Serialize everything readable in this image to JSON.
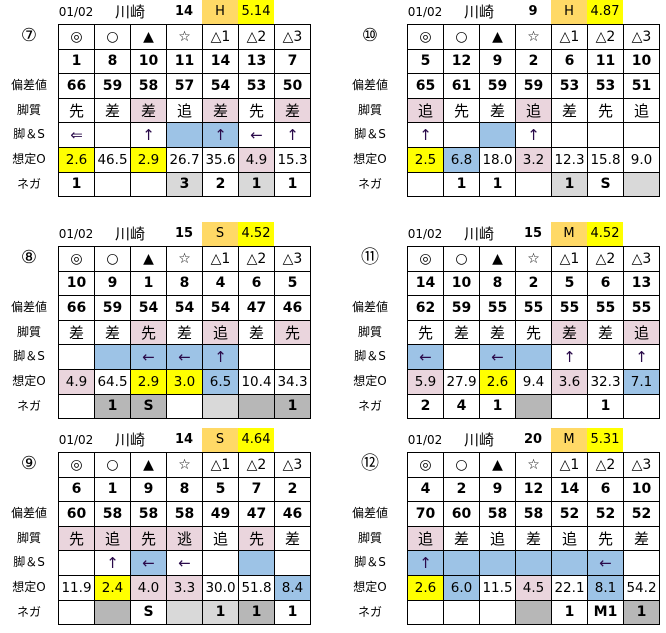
{
  "row_labels": [
    "偏差値",
    "脚質",
    "脚＆S",
    "想定O",
    "ネガ"
  ],
  "marks": [
    "◎",
    "○",
    "▲",
    "☆",
    "△1",
    "△2",
    "△3"
  ],
  "colors": {
    "y": "#ffff00",
    "p": "#ead5dd",
    "b": "#9dc3e6",
    "g": "#d9d9d9",
    "d": "#b7b7b7",
    "condition": "#ffd966",
    "index": "#ffff00"
  },
  "races": [
    {
      "race": "⑦",
      "date": "01/02",
      "venue": "川崎",
      "count": "14",
      "condition": "H",
      "index": "5.14",
      "nums": [
        "1",
        "8",
        "10",
        "11",
        "14",
        "13",
        "7"
      ],
      "dev": [
        "66",
        "59",
        "58",
        "57",
        "54",
        "53",
        "50"
      ],
      "style": [
        "先",
        "差",
        "差",
        "追",
        "差",
        "先",
        "差"
      ],
      "style_c": [
        "",
        "",
        "p",
        "",
        "p",
        "",
        "p"
      ],
      "legs": [
        "⇐",
        "",
        "↑",
        "",
        "↑",
        "←",
        "↑"
      ],
      "legs_c": [
        "",
        "",
        "",
        "b",
        "b",
        "",
        ""
      ],
      "odds": [
        "2.6",
        "46.5",
        "2.9",
        "26.7",
        "35.6",
        "4.9",
        "15.3"
      ],
      "odds_c": [
        "y",
        "",
        "y",
        "",
        "",
        "p",
        ""
      ],
      "nega": [
        "1",
        "",
        "",
        "3",
        "2",
        "1",
        "1"
      ],
      "nega_c": [
        "",
        "",
        "",
        "g",
        "",
        "g",
        ""
      ]
    },
    {
      "race": "⑩",
      "date": "01/02",
      "venue": "川崎",
      "count": "9",
      "condition": "H",
      "index": "4.87",
      "nums": [
        "5",
        "12",
        "9",
        "2",
        "6",
        "11",
        "10"
      ],
      "dev": [
        "65",
        "61",
        "59",
        "59",
        "53",
        "53",
        "51"
      ],
      "style": [
        "追",
        "先",
        "差",
        "追",
        "差",
        "先",
        "追"
      ],
      "style_c": [
        "p",
        "",
        "",
        "p",
        "",
        "",
        ""
      ],
      "legs": [
        "↑",
        "",
        "",
        "↑",
        "",
        "",
        ""
      ],
      "legs_c": [
        "",
        "",
        "b",
        "",
        "",
        "",
        ""
      ],
      "odds": [
        "2.5",
        "6.8",
        "18.0",
        "3.2",
        "12.3",
        "15.8",
        "9.0"
      ],
      "odds_c": [
        "y",
        "b",
        "",
        "p",
        "",
        "",
        ""
      ],
      "nega": [
        "",
        "1",
        "1",
        "",
        "1",
        "S",
        ""
      ],
      "nega_c": [
        "",
        "",
        "",
        "",
        "g",
        "",
        "g"
      ]
    },
    {
      "race": "⑧",
      "date": "01/02",
      "venue": "川崎",
      "count": "15",
      "condition": "S",
      "index": "4.52",
      "nums": [
        "10",
        "9",
        "1",
        "8",
        "4",
        "6",
        "5"
      ],
      "dev": [
        "66",
        "59",
        "54",
        "54",
        "54",
        "47",
        "46"
      ],
      "style": [
        "差",
        "差",
        "先",
        "差",
        "追",
        "差",
        "先"
      ],
      "style_c": [
        "",
        "",
        "p",
        "",
        "p",
        "",
        "p"
      ],
      "legs": [
        "",
        "",
        "←",
        "←",
        "↑",
        "",
        ""
      ],
      "legs_c": [
        "",
        "b",
        "b",
        "b",
        "b",
        "",
        ""
      ],
      "odds": [
        "4.9",
        "64.5",
        "2.9",
        "3.0",
        "6.5",
        "10.4",
        "34.3"
      ],
      "odds_c": [
        "p",
        "",
        "y",
        "y",
        "b",
        "",
        ""
      ],
      "nega": [
        "",
        "1",
        "S",
        "",
        "",
        "",
        "1"
      ],
      "nega_c": [
        "",
        "d",
        "d",
        "",
        "g",
        "d",
        "d"
      ]
    },
    {
      "race": "⑪",
      "date": "01/02",
      "venue": "川崎",
      "count": "15",
      "condition": "M",
      "index": "4.52",
      "nums": [
        "14",
        "10",
        "8",
        "2",
        "5",
        "6",
        "13"
      ],
      "dev": [
        "62",
        "59",
        "55",
        "55",
        "55",
        "55",
        "55"
      ],
      "style": [
        "先",
        "差",
        "差",
        "先",
        "差",
        "差",
        "追"
      ],
      "style_c": [
        "",
        "",
        "",
        "",
        "p",
        "",
        "p"
      ],
      "legs": [
        "←",
        "",
        "←",
        "",
        "↑",
        "",
        "↑"
      ],
      "legs_c": [
        "b",
        "",
        "b",
        "b",
        "",
        "",
        ""
      ],
      "odds": [
        "5.9",
        "27.9",
        "2.6",
        "9.4",
        "3.6",
        "32.3",
        "7.1"
      ],
      "odds_c": [
        "p",
        "",
        "y",
        "",
        "p",
        "",
        "b"
      ],
      "nega": [
        "2",
        "4",
        "1",
        "",
        "",
        "1",
        ""
      ],
      "nega_c": [
        "",
        "",
        "",
        "d",
        "",
        "",
        ""
      ]
    },
    {
      "race": "⑨",
      "date": "01/02",
      "venue": "川崎",
      "count": "14",
      "condition": "S",
      "index": "4.64",
      "nums": [
        "6",
        "1",
        "9",
        "8",
        "5",
        "7",
        "2"
      ],
      "dev": [
        "60",
        "58",
        "58",
        "58",
        "49",
        "47",
        "46"
      ],
      "style": [
        "先",
        "追",
        "先",
        "逃",
        "追",
        "先",
        "差"
      ],
      "style_c": [
        "p",
        "p",
        "p",
        "p",
        "",
        "p",
        ""
      ],
      "legs": [
        "",
        "↑",
        "←",
        "←",
        "",
        "",
        ""
      ],
      "legs_c": [
        "",
        "",
        "b",
        "",
        "",
        "b",
        ""
      ],
      "odds": [
        "11.9",
        "2.4",
        "4.0",
        "3.3",
        "30.0",
        "51.8",
        "8.4"
      ],
      "odds_c": [
        "",
        "y",
        "p",
        "p",
        "",
        "",
        "b"
      ],
      "nega": [
        "",
        "",
        "S",
        "",
        "1",
        "1",
        "1"
      ],
      "nega_c": [
        "",
        "d",
        "",
        "g",
        "g",
        "d",
        ""
      ]
    },
    {
      "race": "⑫",
      "date": "01/02",
      "venue": "川崎",
      "count": "20",
      "condition": "M",
      "index": "5.31",
      "nums": [
        "4",
        "2",
        "9",
        "12",
        "14",
        "6",
        "10"
      ],
      "dev": [
        "70",
        "60",
        "58",
        "58",
        "52",
        "52",
        "52"
      ],
      "style": [
        "追",
        "差",
        "追",
        "差",
        "追",
        "先",
        "差"
      ],
      "style_c": [
        "p",
        "",
        "",
        "",
        "",
        "",
        ""
      ],
      "legs": [
        "↑",
        "",
        "",
        "",
        "",
        "←",
        ""
      ],
      "legs_c": [
        "b",
        "b",
        "b",
        "b",
        "b",
        "b",
        ""
      ],
      "odds": [
        "2.6",
        "6.0",
        "11.5",
        "4.5",
        "22.1",
        "8.1",
        "54.2"
      ],
      "odds_c": [
        "y",
        "b",
        "",
        "p",
        "",
        "b",
        ""
      ],
      "nega": [
        "",
        "",
        "",
        "",
        "1",
        "M1",
        "1"
      ],
      "nega_c": [
        "",
        "",
        "",
        "d",
        "",
        "",
        "d"
      ]
    }
  ]
}
